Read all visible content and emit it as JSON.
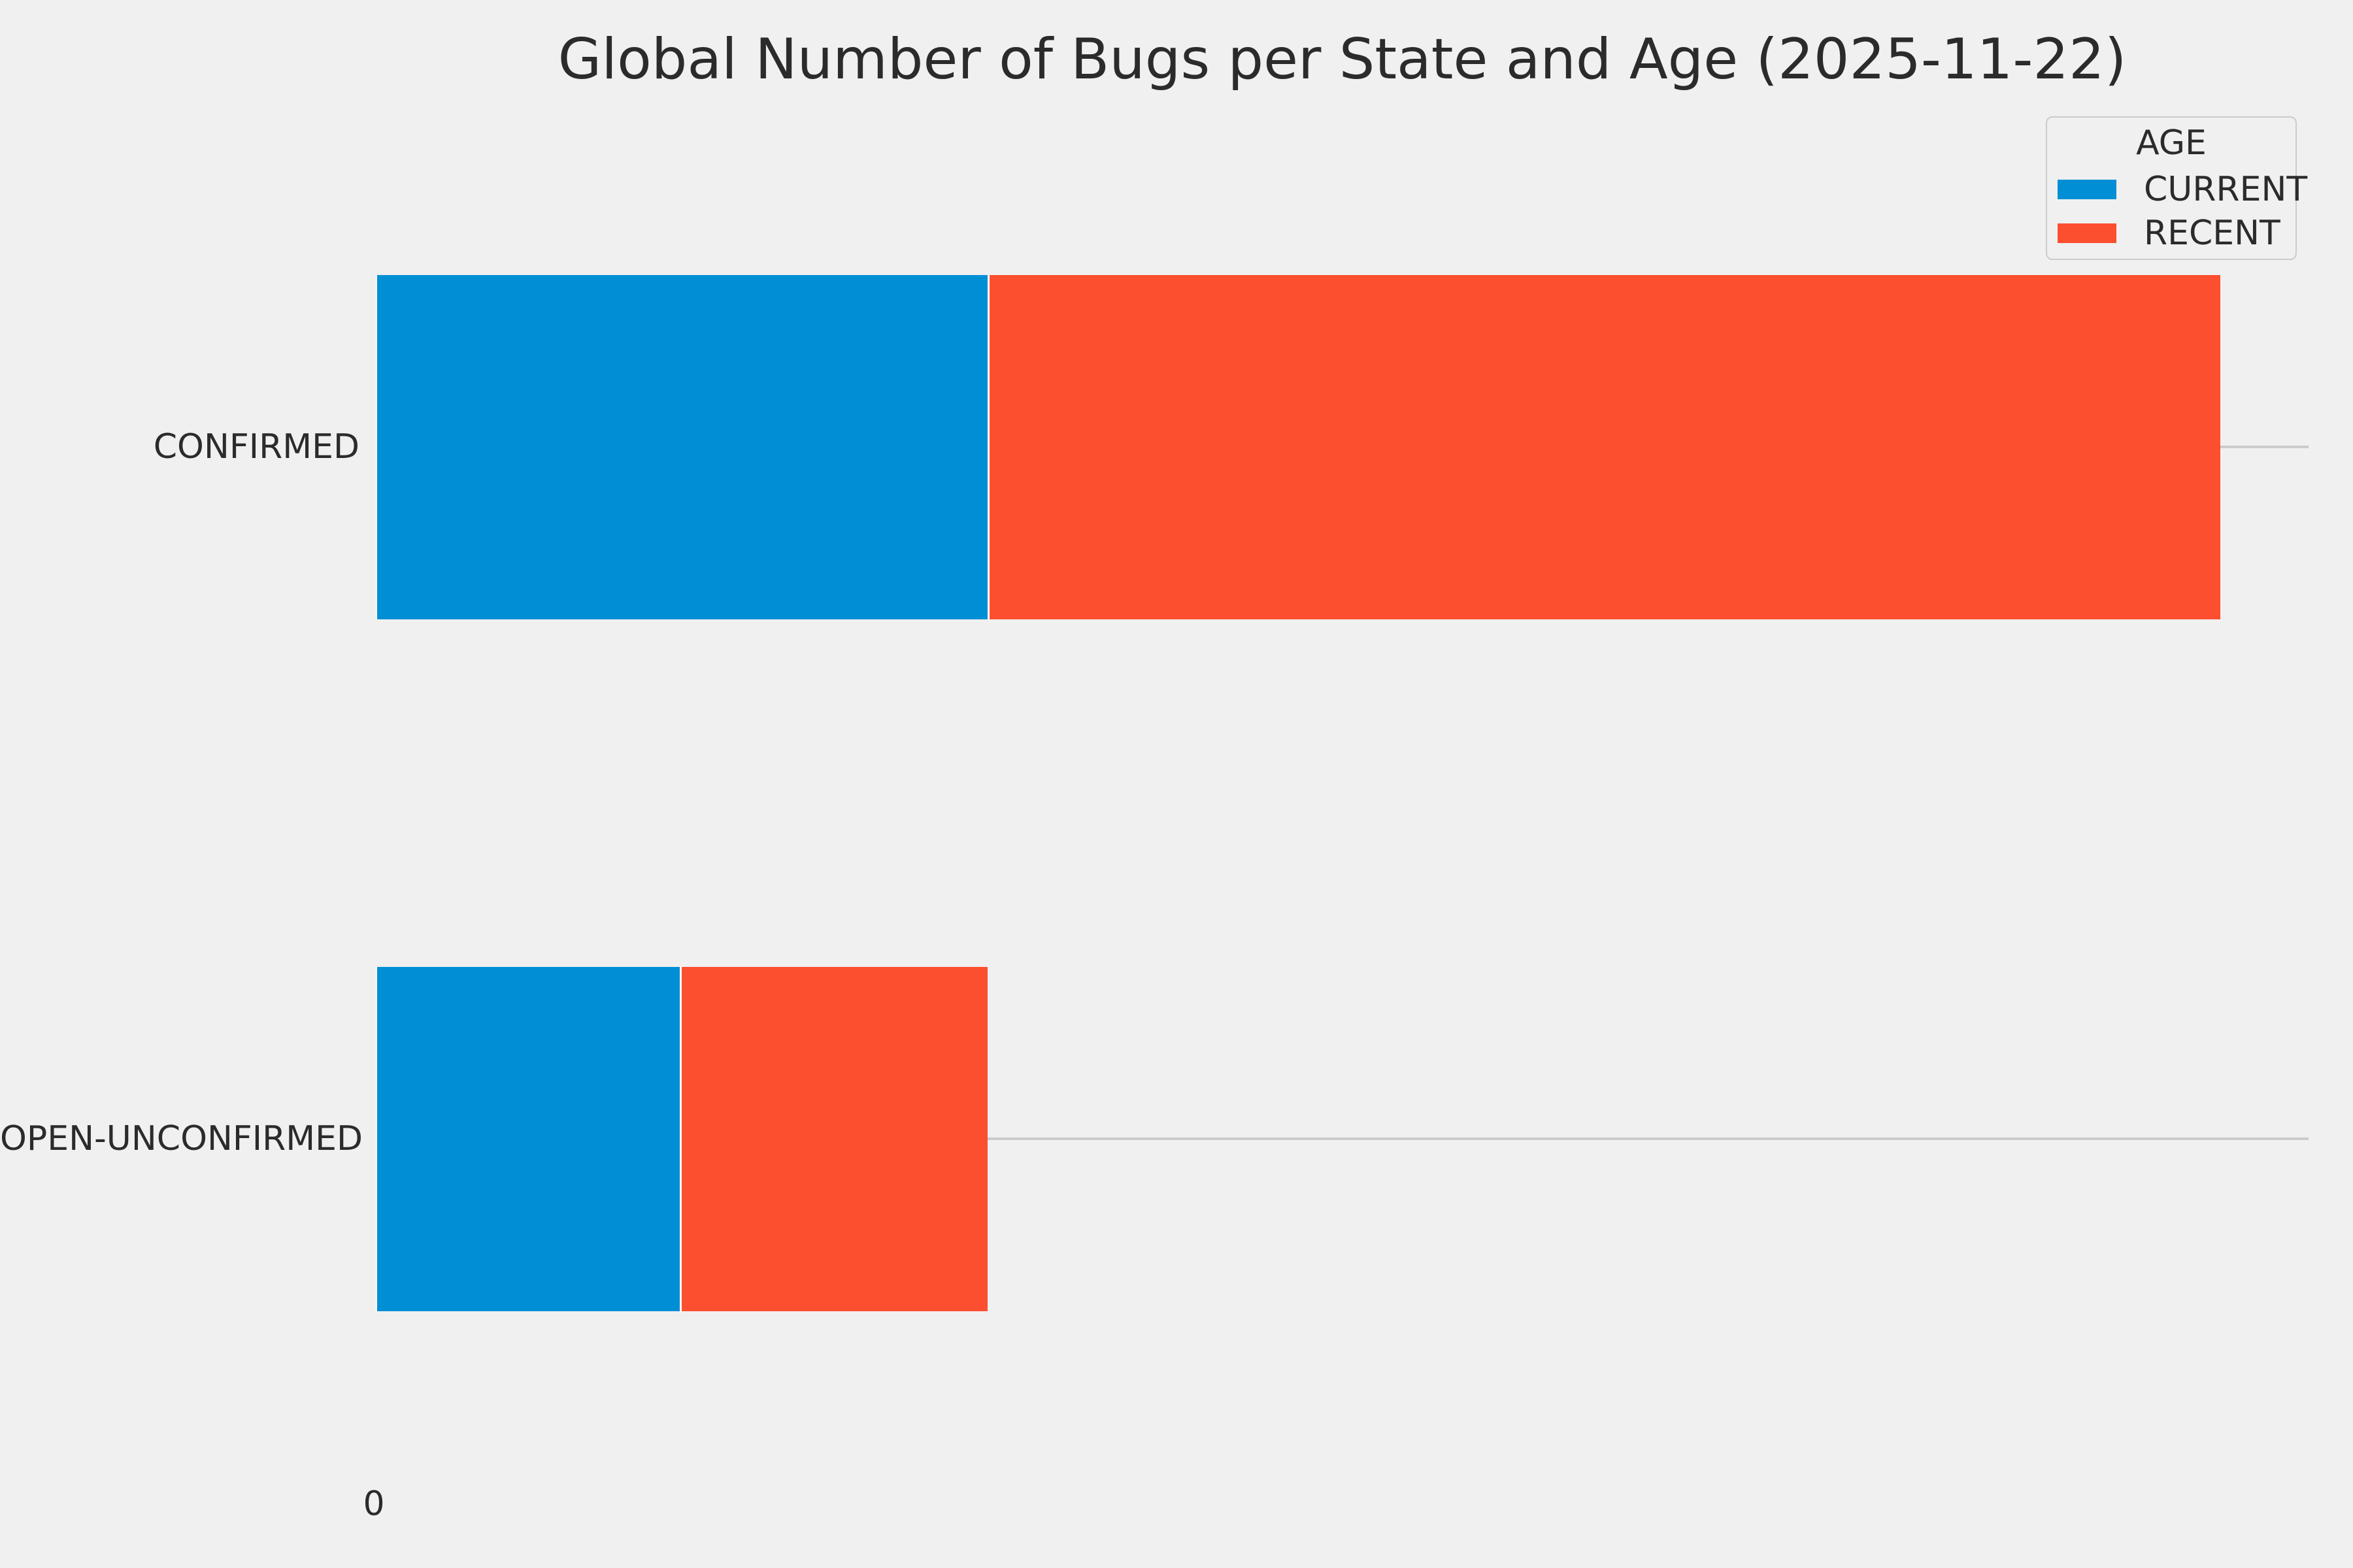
{
  "chart_data": {
    "type": "bar",
    "orientation": "horizontal",
    "stacked": true,
    "title": "Global Number of Bugs per State and Age (2025-11-22)",
    "categories": [
      "CONFIRMED",
      "OPEN-UNCONFIRMED"
    ],
    "series": [
      {
        "name": "CURRENT",
        "color": "#008fd5",
        "values": [
          935,
          465
        ]
      },
      {
        "name": "RECENT",
        "color": "#fc4f30",
        "values": [
          1885,
          470
        ]
      }
    ],
    "xlabel": "",
    "ylabel": "",
    "x_axis": {
      "tick_labels": [
        "0"
      ],
      "xlim": [
        0,
        2955
      ]
    },
    "y_axis": {
      "tick_labels": [
        "CONFIRMED",
        "OPEN-UNCONFIRMED"
      ]
    },
    "legend": {
      "title": "AGE",
      "entries": [
        "CURRENT",
        "RECENT"
      ],
      "position": "upper right"
    },
    "grid": "horizontal tick lines only, visible right of bars",
    "note": "x axis shows only the 0 tick; series values are proportional estimates read from bar lengths"
  },
  "colors": {
    "background": "#f0f0f0",
    "gridline": "#cbcbcb",
    "text": "#2b2b2b",
    "segment_gap": "#ffffff"
  }
}
